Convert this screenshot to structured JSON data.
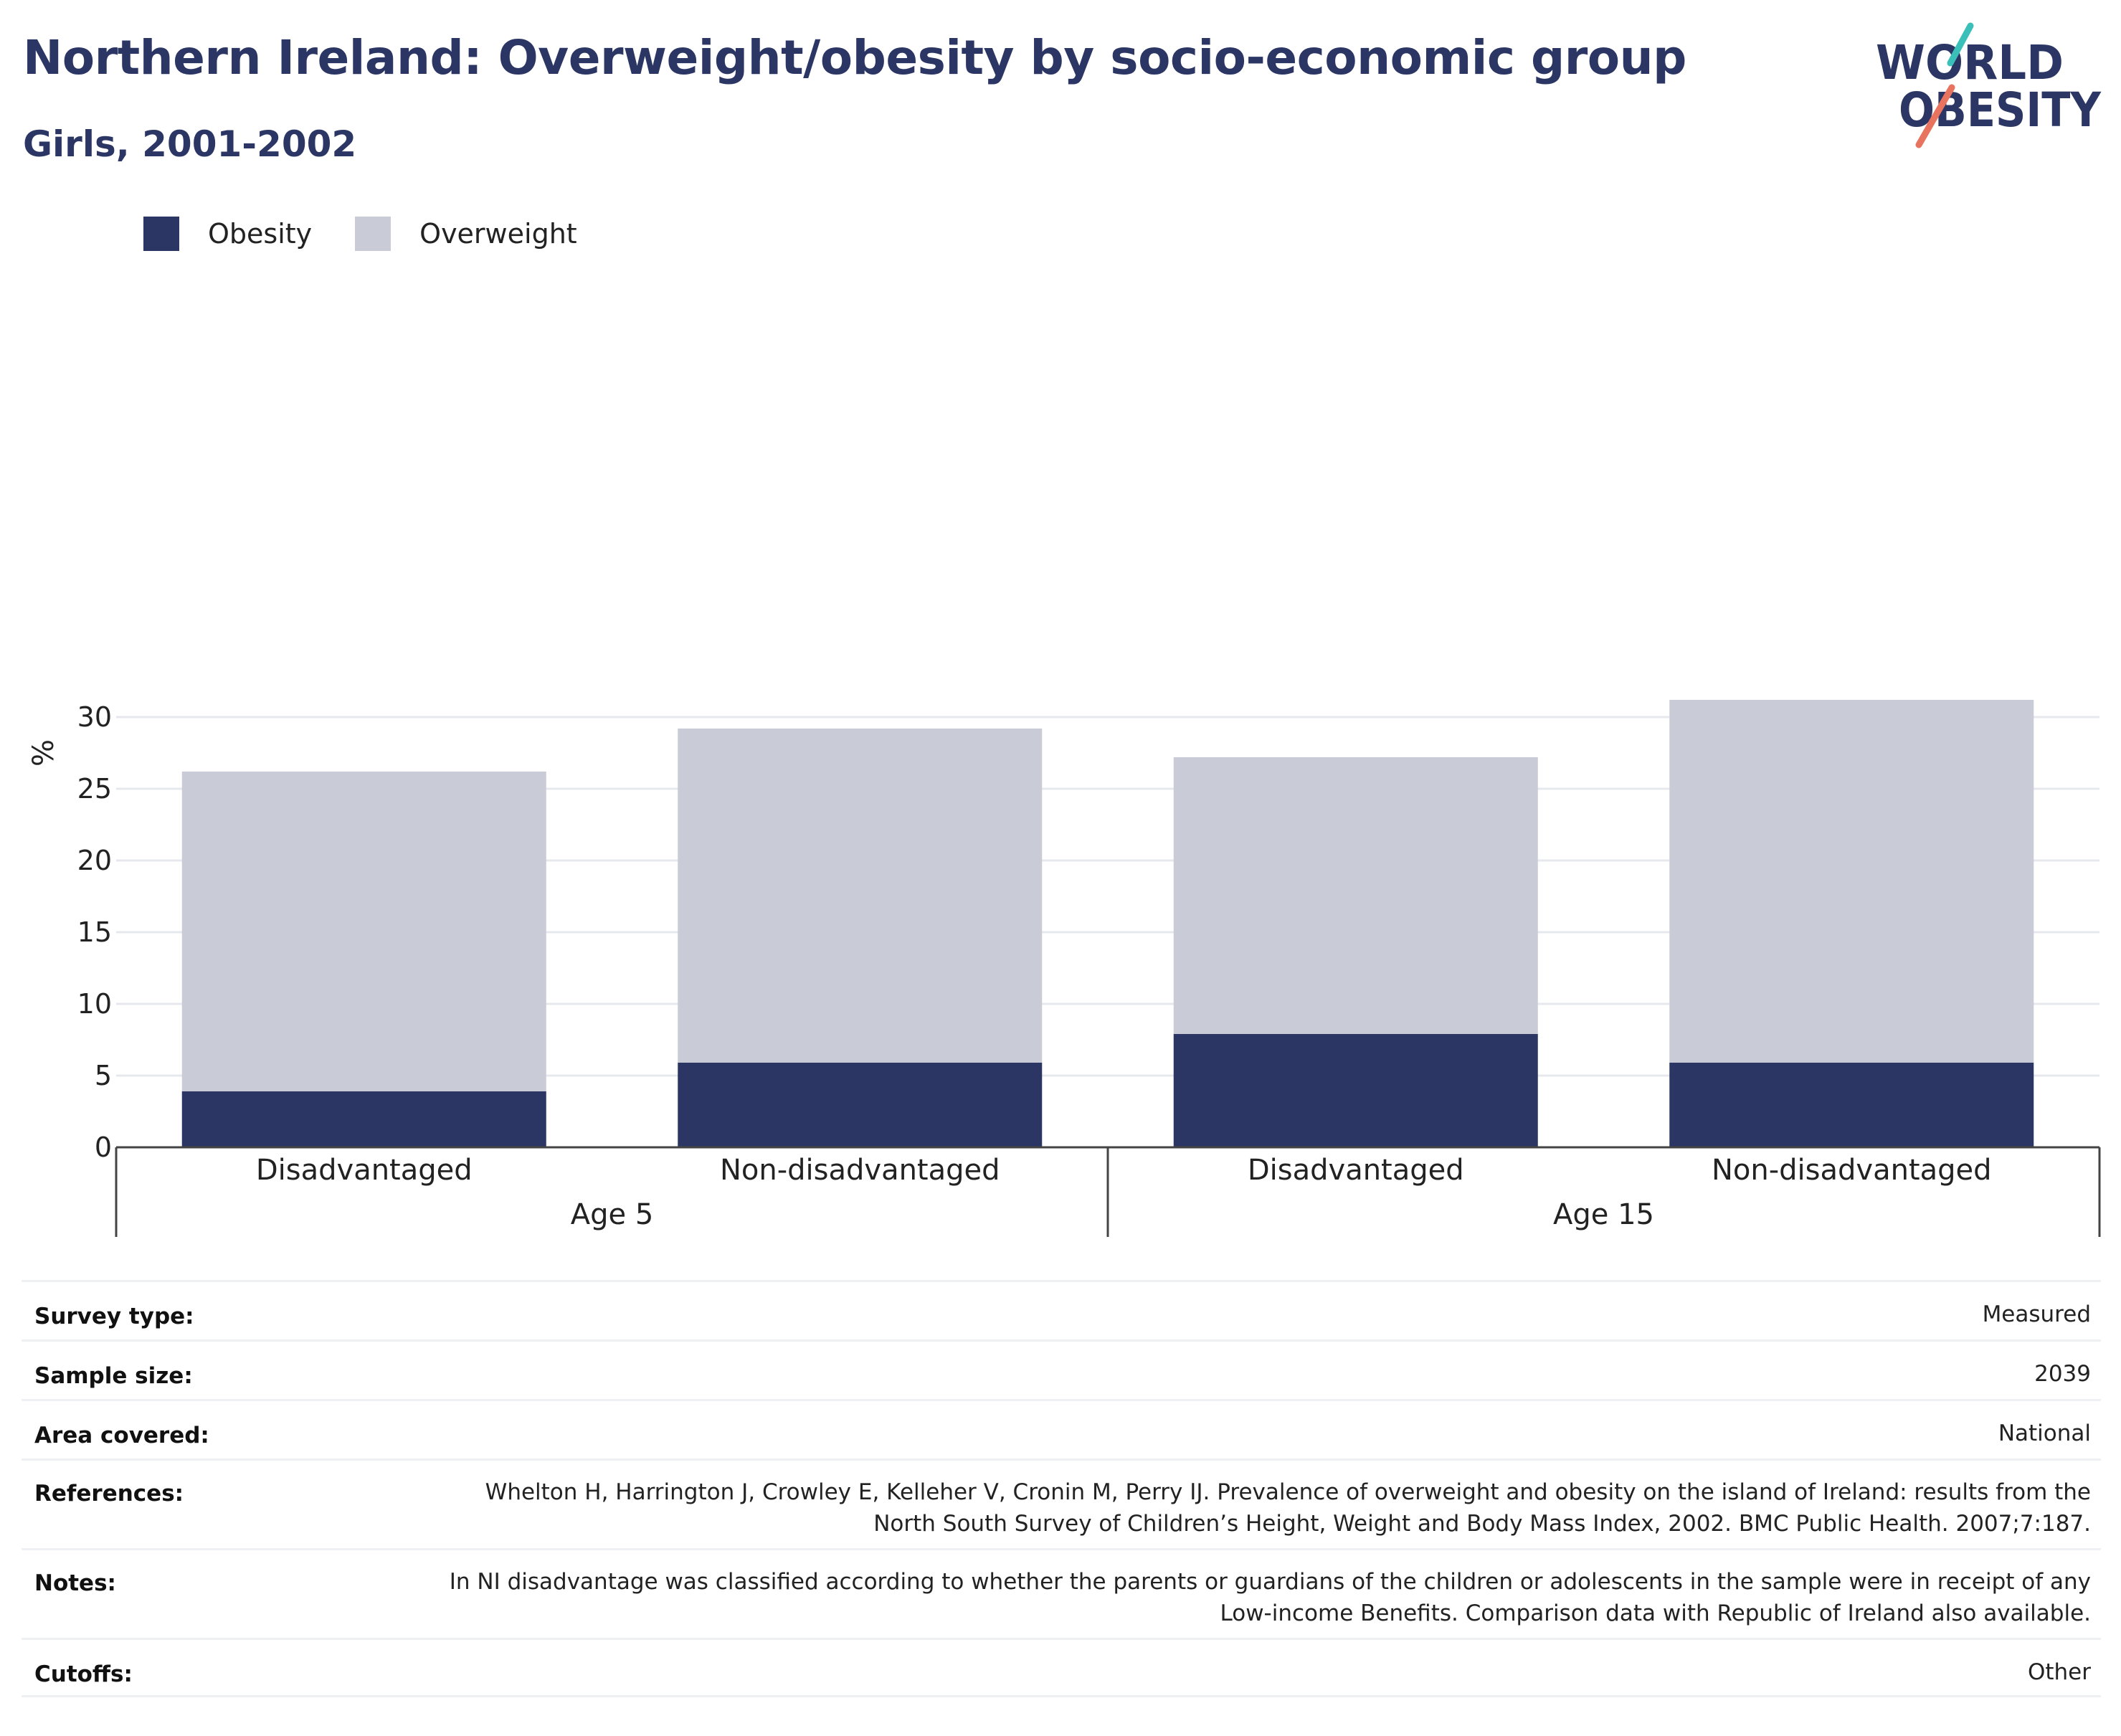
{
  "title": "Northern Ireland: Overweight/obesity by socio-economic group",
  "subtitle": "Girls, 2001-2002",
  "logo": {
    "line1": "WORLD",
    "line2": "OBESITY",
    "accent_teal": "#3bbfb9",
    "accent_coral": "#e8735f"
  },
  "legend": [
    {
      "label": "Obesity",
      "color": "#2b3664"
    },
    {
      "label": "Overweight",
      "color": "#c9cbd7"
    }
  ],
  "chart_data": {
    "type": "bar",
    "stacked": true,
    "ylabel": "%",
    "ylim": [
      0,
      32
    ],
    "yticks": [
      0,
      5,
      10,
      15,
      20,
      25,
      30
    ],
    "grid": true,
    "legend_position": "top-left",
    "categories": [
      "Disadvantaged",
      "Non-disadvantaged",
      "Disadvantaged",
      "Non-disadvantaged"
    ],
    "groups": [
      {
        "label": "Age 5",
        "categories": [
          0,
          1
        ]
      },
      {
        "label": "Age 15",
        "categories": [
          2,
          3
        ]
      }
    ],
    "series": [
      {
        "name": "Obesity",
        "color": "#2b3664",
        "values": [
          3.9,
          5.9,
          7.9,
          5.9
        ]
      },
      {
        "name": "Overweight",
        "color": "#c9cbd7",
        "values": [
          22.3,
          23.3,
          19.3,
          25.3
        ]
      }
    ]
  },
  "info": [
    {
      "label": "Survey type:",
      "value": "Measured"
    },
    {
      "label": "Sample size:",
      "value": "2039"
    },
    {
      "label": "Area covered:",
      "value": "National"
    },
    {
      "label": "References:",
      "value": "Whelton H, Harrington J, Crowley E, Kelleher V, Cronin M, Perry IJ. Prevalence of overweight and obesity on the island of Ireland: results from the North South Survey of Children’s Height, Weight and Body Mass Index, 2002. BMC Public Health. 2007;7:187."
    },
    {
      "label": "Notes:",
      "value": "In NI disadvantage was classified according to whether the parents or guardians of the children or adolescents in the sample were in receipt of any Low-income Benefits. Comparison data with Republic of Ireland also available."
    },
    {
      "label": "Cutoffs:",
      "value": "Other"
    }
  ]
}
